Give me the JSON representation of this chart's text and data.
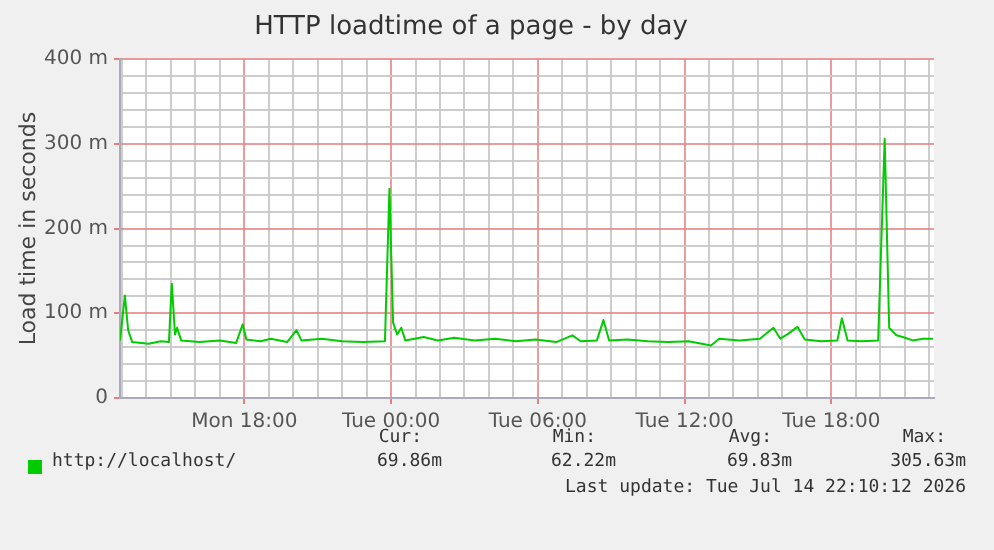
{
  "chart_data": {
    "type": "line",
    "title": "HTTP loadtime of a page - by day",
    "ylabel": "Load time in seconds",
    "x": [
      "2026-07-13T12:55",
      "2026-07-13T13:07",
      "2026-07-13T13:15",
      "2026-07-13T13:25",
      "2026-07-13T14:05",
      "2026-07-13T14:35",
      "2026-07-13T14:55",
      "2026-07-13T15:02",
      "2026-07-13T15:10",
      "2026-07-13T15:15",
      "2026-07-13T15:25",
      "2026-07-13T16:10",
      "2026-07-13T17:00",
      "2026-07-13T17:40",
      "2026-07-13T17:56",
      "2026-07-13T18:05",
      "2026-07-13T18:40",
      "2026-07-13T19:05",
      "2026-07-13T19:45",
      "2026-07-13T20:08",
      "2026-07-13T20:20",
      "2026-07-13T21:10",
      "2026-07-13T22:00",
      "2026-07-13T22:50",
      "2026-07-13T23:45",
      "2026-07-13T23:56",
      "2026-07-14T00:05",
      "2026-07-14T00:15",
      "2026-07-14T00:25",
      "2026-07-14T00:35",
      "2026-07-14T01:20",
      "2026-07-14T01:55",
      "2026-07-14T02:35",
      "2026-07-14T03:25",
      "2026-07-14T04:15",
      "2026-07-14T05:05",
      "2026-07-14T05:55",
      "2026-07-14T06:45",
      "2026-07-14T07:25",
      "2026-07-14T07:45",
      "2026-07-14T08:25",
      "2026-07-14T08:41",
      "2026-07-14T08:55",
      "2026-07-14T09:40",
      "2026-07-14T10:30",
      "2026-07-14T11:20",
      "2026-07-14T12:10",
      "2026-07-14T13:05",
      "2026-07-14T13:25",
      "2026-07-14T14:15",
      "2026-07-14T15:05",
      "2026-07-14T15:38",
      "2026-07-14T15:55",
      "2026-07-14T16:15",
      "2026-07-14T16:37",
      "2026-07-14T16:55",
      "2026-07-14T17:35",
      "2026-07-14T18:15",
      "2026-07-14T18:26",
      "2026-07-14T18:40",
      "2026-07-14T19:15",
      "2026-07-14T19:55",
      "2026-07-14T20:11",
      "2026-07-14T20:22",
      "2026-07-14T20:40",
      "2026-07-14T20:55",
      "2026-07-14T21:20",
      "2026-07-14T21:45",
      "2026-07-14T22:10"
    ],
    "series": [
      {
        "name": "http://localhost/",
        "color": "#00cc00",
        "values": [
          68,
          121,
          80,
          66,
          64,
          67,
          66,
          135,
          75,
          83,
          68,
          66,
          68,
          65,
          87,
          69,
          67,
          70,
          66,
          80,
          68,
          70,
          67,
          66,
          67,
          247,
          89,
          75,
          83,
          68,
          72,
          68,
          71,
          68,
          70,
          67,
          69,
          66,
          74,
          67,
          68,
          92,
          68,
          69,
          67,
          66,
          67,
          62,
          70,
          68,
          70,
          83,
          70,
          76,
          84,
          69,
          67,
          68,
          94,
          68,
          67,
          68,
          306,
          83,
          74,
          72,
          68,
          70,
          70
        ]
      }
    ],
    "xlim": [
      "2026-07-13T12:55",
      "2026-07-14T22:12"
    ],
    "xticks": [
      {
        "value": "2026-07-13T13:00",
        "label": null
      },
      {
        "value": "2026-07-13T14:00",
        "label": null
      },
      {
        "value": "2026-07-13T15:00",
        "label": null
      },
      {
        "value": "2026-07-13T16:00",
        "label": null
      },
      {
        "value": "2026-07-13T17:00",
        "label": null
      },
      {
        "value": "2026-07-13T18:00",
        "label": "Mon 18:00"
      },
      {
        "value": "2026-07-13T19:00",
        "label": null
      },
      {
        "value": "2026-07-13T20:00",
        "label": null
      },
      {
        "value": "2026-07-13T21:00",
        "label": null
      },
      {
        "value": "2026-07-13T22:00",
        "label": null
      },
      {
        "value": "2026-07-13T23:00",
        "label": null
      },
      {
        "value": "2026-07-14T00:00",
        "label": "Tue 00:00"
      },
      {
        "value": "2026-07-14T01:00",
        "label": null
      },
      {
        "value": "2026-07-14T02:00",
        "label": null
      },
      {
        "value": "2026-07-14T03:00",
        "label": null
      },
      {
        "value": "2026-07-14T04:00",
        "label": null
      },
      {
        "value": "2026-07-14T05:00",
        "label": null
      },
      {
        "value": "2026-07-14T06:00",
        "label": "Tue 06:00"
      },
      {
        "value": "2026-07-14T07:00",
        "label": null
      },
      {
        "value": "2026-07-14T08:00",
        "label": null
      },
      {
        "value": "2026-07-14T09:00",
        "label": null
      },
      {
        "value": "2026-07-14T10:00",
        "label": null
      },
      {
        "value": "2026-07-14T11:00",
        "label": null
      },
      {
        "value": "2026-07-14T12:00",
        "label": "Tue 12:00"
      },
      {
        "value": "2026-07-14T13:00",
        "label": null
      },
      {
        "value": "2026-07-14T14:00",
        "label": null
      },
      {
        "value": "2026-07-14T15:00",
        "label": null
      },
      {
        "value": "2026-07-14T16:00",
        "label": null
      },
      {
        "value": "2026-07-14T17:00",
        "label": null
      },
      {
        "value": "2026-07-14T18:00",
        "label": "Tue 18:00"
      },
      {
        "value": "2026-07-14T19:00",
        "label": null
      },
      {
        "value": "2026-07-14T20:00",
        "label": null
      },
      {
        "value": "2026-07-14T21:00",
        "label": null
      },
      {
        "value": "2026-07-14T22:00",
        "label": null
      }
    ],
    "ylim": [
      0,
      400
    ],
    "yticks": [
      0,
      {
        "value": 20,
        "label": null
      },
      {
        "value": 40,
        "label": null
      },
      {
        "value": 60,
        "label": null
      },
      {
        "value": 80,
        "label": null
      },
      {
        "value": 100,
        "label": "100 m"
      },
      {
        "value": 120,
        "label": null
      },
      {
        "value": 140,
        "label": null
      },
      {
        "value": 160,
        "label": null
      },
      {
        "value": 180,
        "label": null
      },
      {
        "value": 200,
        "label": "200 m"
      },
      {
        "value": 220,
        "label": null
      },
      {
        "value": 240,
        "label": null
      },
      {
        "value": 260,
        "label": null
      },
      {
        "value": 280,
        "label": null
      },
      {
        "value": 300,
        "label": "300 m"
      },
      {
        "value": 320,
        "label": null
      },
      {
        "value": 340,
        "label": null
      },
      {
        "value": 360,
        "label": null
      },
      {
        "value": 380,
        "label": null
      },
      {
        "value": 400,
        "label": "400 m"
      }
    ],
    "grid": true,
    "legend": "bottom",
    "marker": "none",
    "line_style": "solid",
    "annotations": [
      "Cur:",
      "Min:",
      "Avg:",
      "Max:",
      "69.86m",
      "62.22m",
      "69.83m",
      "305.63m",
      "Last update: Tue Jul 14 22:10:12 2026"
    ]
  }
}
